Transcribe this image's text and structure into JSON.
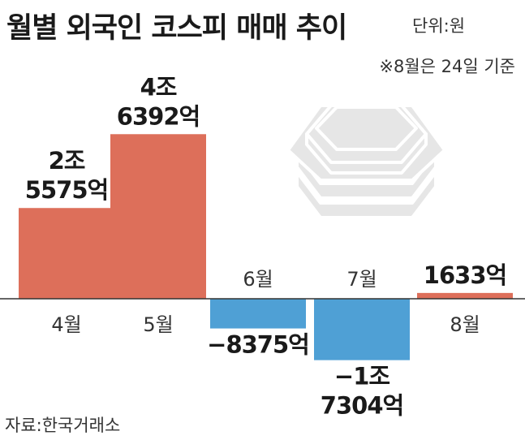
{
  "header": {
    "title": "월별 외국인 코스피 매매 추이",
    "unit": "단위:원",
    "note": "※8월은 24일 기준"
  },
  "footer": {
    "source": "자료:한국거래소"
  },
  "colors": {
    "positive": "#dd6f5a",
    "negative": "#4fa0d5",
    "axis": "#333333",
    "illustration": "#e6e6e6"
  },
  "chart_data": {
    "type": "bar",
    "categories": [
      "4월",
      "5월",
      "6월",
      "7월",
      "8월"
    ],
    "values": [
      25575,
      46392,
      -8375,
      -17304,
      1633
    ],
    "value_unit": "억원",
    "data_labels": [
      [
        "2조",
        "5575억"
      ],
      [
        "4조",
        "6392억"
      ],
      [
        "−8375억"
      ],
      [
        "−1조",
        "7304억"
      ],
      [
        "1633억"
      ]
    ],
    "title": "월별 외국인 코스피 매매 추이",
    "xlabel": "",
    "ylabel": "",
    "ylim": [
      -20000,
      50000
    ],
    "grid": false,
    "legend": "none"
  },
  "illustration": {
    "icon": "kospi-building-icon"
  }
}
